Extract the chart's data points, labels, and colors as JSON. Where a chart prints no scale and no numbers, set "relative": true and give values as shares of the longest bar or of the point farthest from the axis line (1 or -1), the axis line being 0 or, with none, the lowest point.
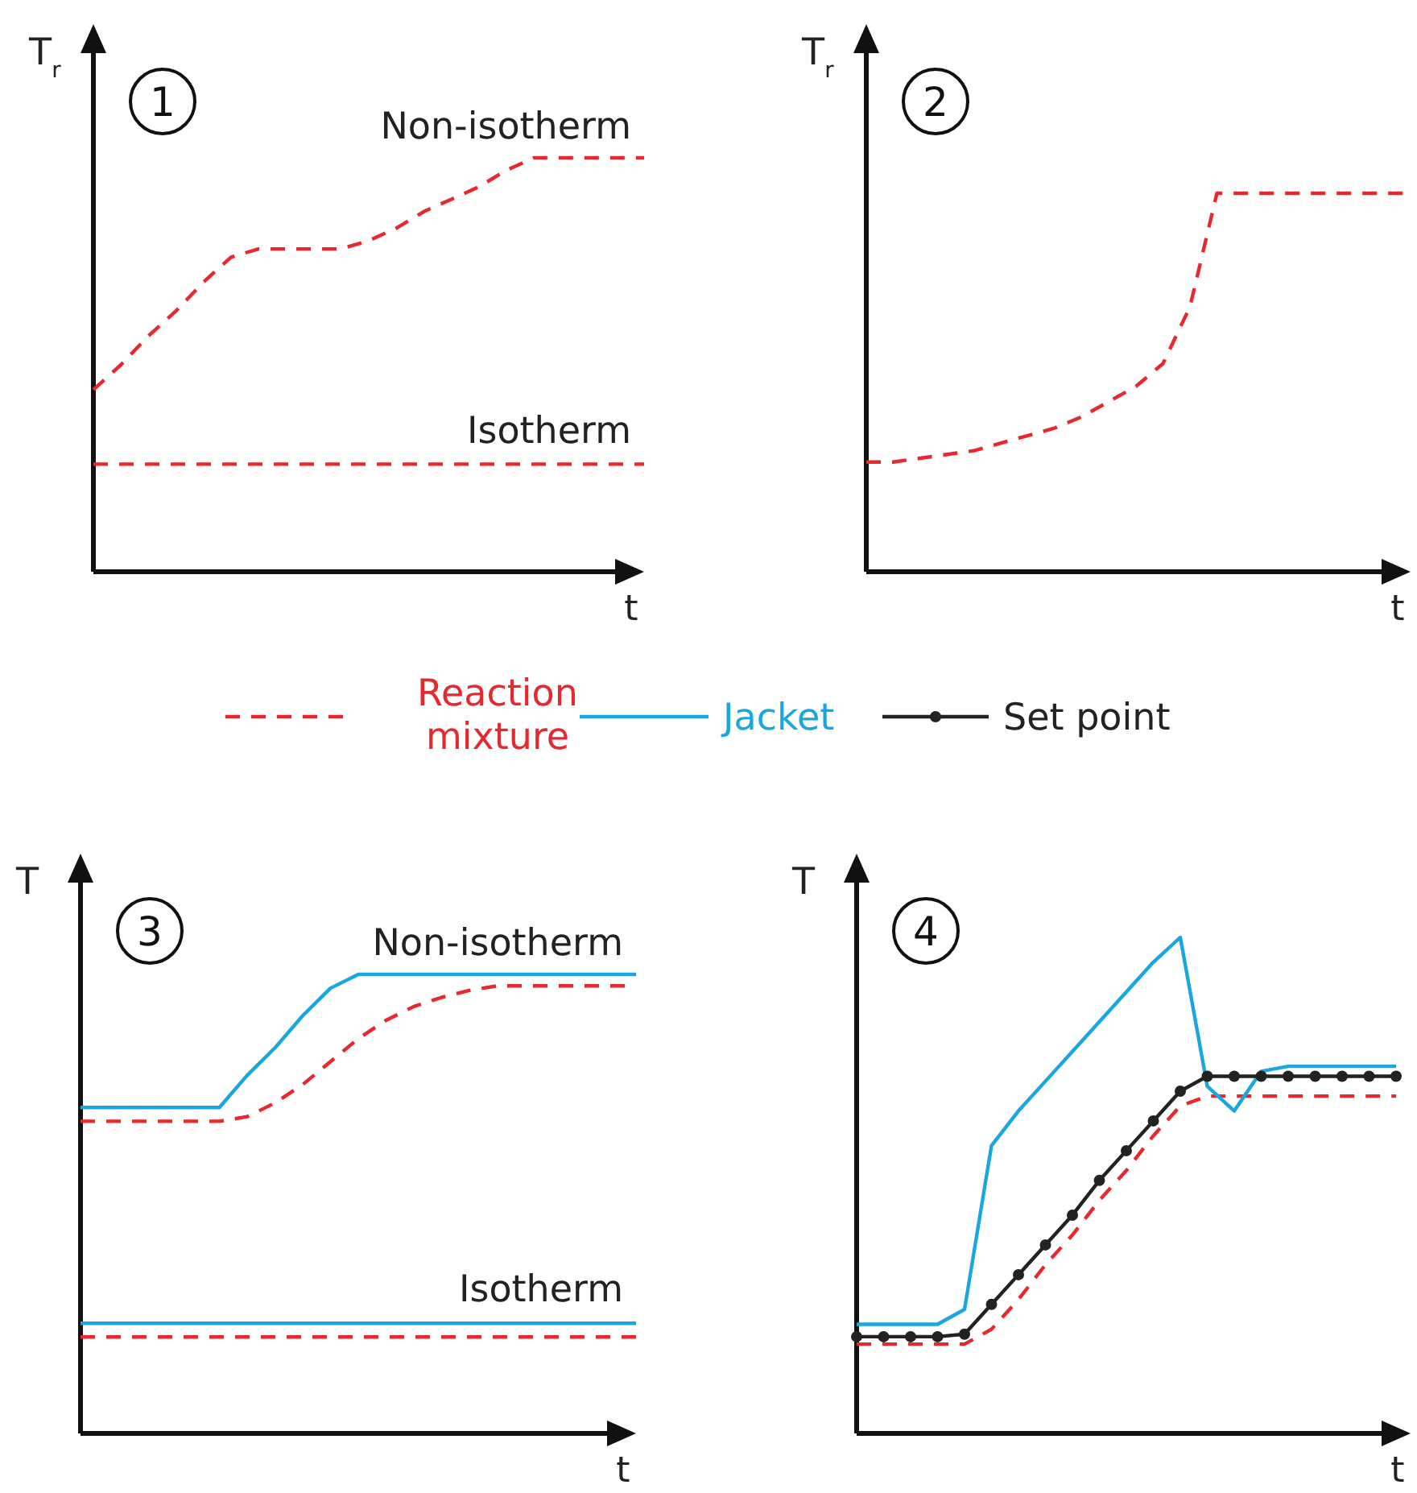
{
  "chart_data": [
    {
      "type": "line",
      "relative": true,
      "xlabel": "t",
      "ylabel": "T$_{r}$",
      "categories": [
        null,
        null,
        null,
        null,
        null,
        null,
        null,
        null,
        null,
        null,
        null,
        null,
        null,
        null,
        null,
        null,
        null,
        null,
        null,
        null,
        null
      ],
      "annotations": [
        "1",
        "Non-isotherm",
        "Isotherm"
      ],
      "series": [
        {
          "color": "#e8282f",
          "line_style": "dashed",
          "values": [
            0.44,
            0.5,
            0.57,
            0.63,
            0.7,
            0.76,
            0.78,
            0.78,
            0.78,
            0.78,
            0.8,
            0.83,
            0.87,
            0.9,
            0.93,
            0.97,
            1.0,
            1.0,
            1.0,
            1.0,
            1.0
          ]
        },
        {
          "color": "#e8282f",
          "line_style": "dashed",
          "values": [
            0.26,
            0.26,
            0.26,
            0.26,
            0.26,
            0.26,
            0.26,
            0.26,
            0.26,
            0.26,
            0.26,
            0.26,
            0.26,
            0.26,
            0.26,
            0.26,
            0.26,
            0.26,
            0.26,
            0.26,
            0.26
          ]
        }
      ]
    },
    {
      "type": "line",
      "relative": true,
      "xlabel": "t",
      "ylabel": "T$_{r}$",
      "categories": [
        null,
        null,
        null,
        null,
        null,
        null,
        null,
        null,
        null,
        null,
        null,
        null,
        null,
        null,
        null,
        null,
        null,
        null,
        null,
        null,
        null
      ],
      "annotations": [
        "2"
      ],
      "series": [
        {
          "color": "#e8282f",
          "line_style": "dashed",
          "values": [
            0.29,
            0.29,
            0.3,
            0.31,
            0.32,
            0.34,
            0.36,
            0.38,
            0.41,
            0.45,
            0.49,
            0.55,
            0.7,
            1.0,
            1.0,
            1.0,
            1.0,
            1.0,
            1.0,
            1.0,
            1.0
          ]
        }
      ]
    },
    {
      "type": "line",
      "relative": true,
      "xlabel": "t",
      "ylabel": "T",
      "categories": [
        null,
        null,
        null,
        null,
        null,
        null,
        null,
        null,
        null,
        null,
        null,
        null,
        null,
        null,
        null,
        null,
        null,
        null,
        null,
        null,
        null
      ],
      "annotations": [
        "3",
        "Non-isotherm",
        "Isotherm"
      ],
      "series": [
        {
          "color": "#1aa7e0",
          "line_style": "solid",
          "values": [
            0.71,
            0.71,
            0.71,
            0.71,
            0.71,
            0.71,
            0.78,
            0.84,
            0.91,
            0.97,
            1.0,
            1.0,
            1.0,
            1.0,
            1.0,
            1.0,
            1.0,
            1.0,
            1.0,
            1.0,
            1.0
          ]
        },
        {
          "color": "#e8282f",
          "line_style": "dashed",
          "values": [
            0.68,
            0.68,
            0.68,
            0.68,
            0.68,
            0.68,
            0.69,
            0.72,
            0.76,
            0.81,
            0.86,
            0.9,
            0.93,
            0.95,
            0.965,
            0.975,
            0.975,
            0.975,
            0.975,
            0.975,
            0.975
          ]
        },
        {
          "color": "#1aa7e0",
          "line_style": "solid",
          "values": [
            0.24,
            0.24,
            0.24,
            0.24,
            0.24,
            0.24,
            0.24,
            0.24,
            0.24,
            0.24,
            0.24,
            0.24,
            0.24,
            0.24,
            0.24,
            0.24,
            0.24,
            0.24,
            0.24,
            0.24,
            0.24
          ]
        },
        {
          "color": "#e8282f",
          "line_style": "dashed",
          "values": [
            0.21,
            0.21,
            0.21,
            0.21,
            0.21,
            0.21,
            0.21,
            0.21,
            0.21,
            0.21,
            0.21,
            0.21,
            0.21,
            0.21,
            0.21,
            0.21,
            0.21,
            0.21,
            0.21,
            0.21,
            0.21
          ]
        }
      ]
    },
    {
      "type": "line",
      "relative": true,
      "xlabel": "t",
      "ylabel": "T",
      "legend": "top",
      "categories": [
        null,
        null,
        null,
        null,
        null,
        null,
        null,
        null,
        null,
        null,
        null,
        null,
        null,
        null,
        null,
        null,
        null,
        null,
        null,
        null,
        null
      ],
      "annotations": [
        "4"
      ],
      "series": [
        {
          "name": "Reaction mixture",
          "color": "#e8282f",
          "line_style": "dashed",
          "marker": "none",
          "values": [
            0.18,
            0.18,
            0.18,
            0.18,
            0.18,
            0.21,
            0.27,
            0.34,
            0.4,
            0.47,
            0.53,
            0.6,
            0.66,
            0.68,
            0.68,
            0.68,
            0.68,
            0.68,
            0.68,
            0.68,
            0.68
          ]
        },
        {
          "name": "Jacket",
          "color": "#1aa7e0",
          "line_style": "solid",
          "marker": "none",
          "values": [
            0.22,
            0.22,
            0.22,
            0.22,
            0.25,
            0.58,
            0.65,
            0.71,
            0.77,
            0.83,
            0.89,
            0.95,
            1.0,
            0.7,
            0.65,
            0.73,
            0.74,
            0.74,
            0.74,
            0.74,
            0.74
          ]
        },
        {
          "name": "Set point",
          "color": "#222222",
          "line_style": "solid",
          "marker": "circle",
          "values": [
            0.195,
            0.195,
            0.195,
            0.195,
            0.2,
            0.26,
            0.32,
            0.38,
            0.44,
            0.51,
            0.57,
            0.63,
            0.69,
            0.72,
            0.72,
            0.72,
            0.72,
            0.72,
            0.72,
            0.72,
            0.72
          ]
        }
      ]
    }
  ]
}
